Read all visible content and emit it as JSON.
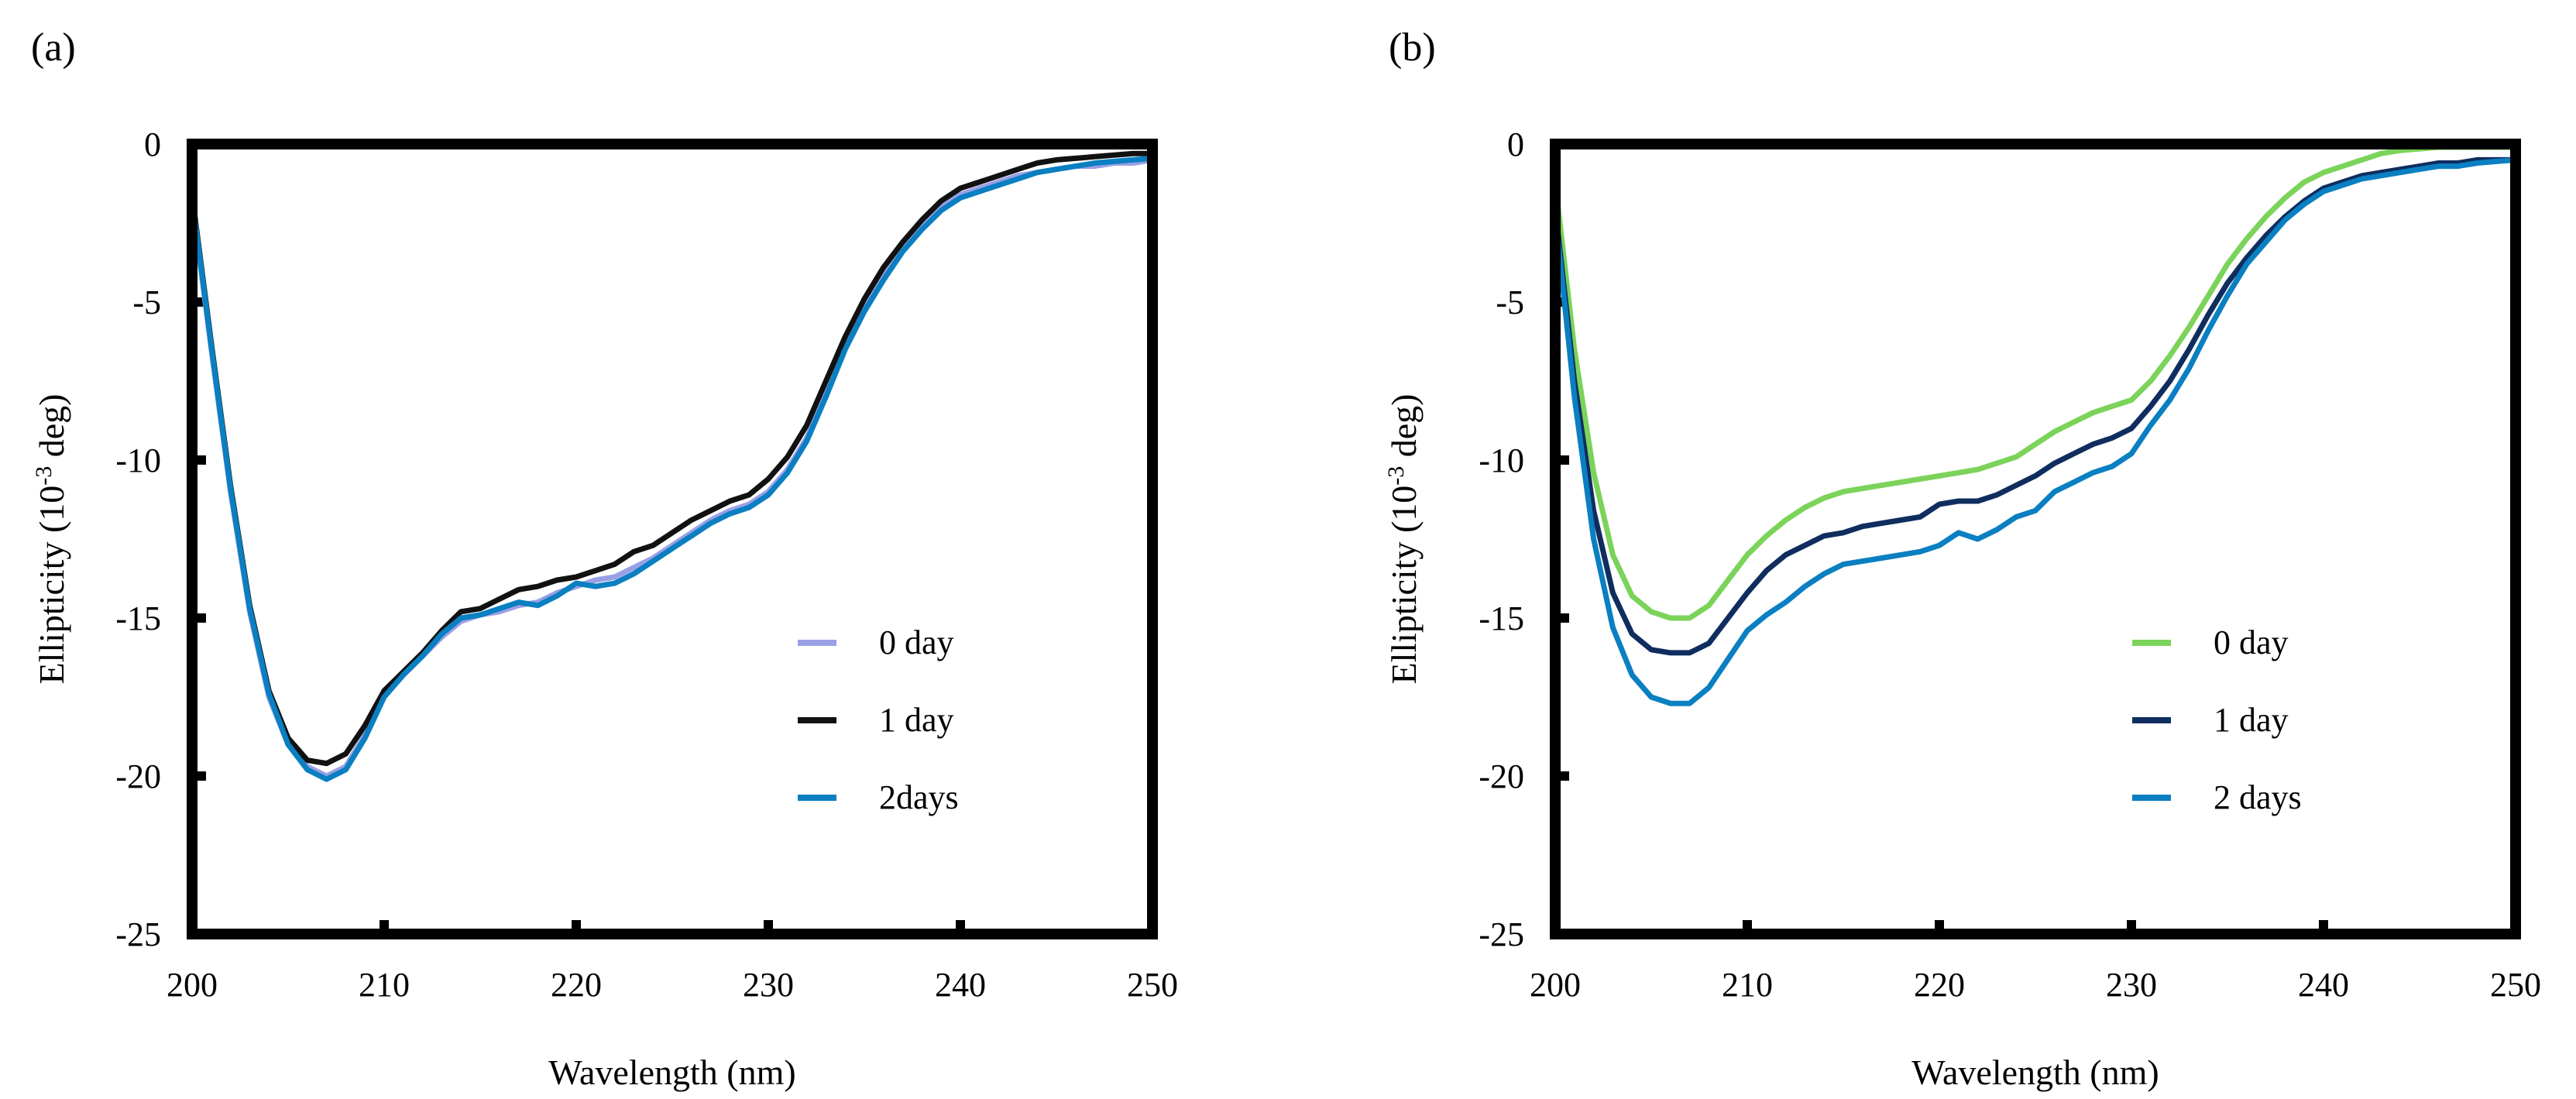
{
  "chart_data": [
    {
      "panel_label": "(a)",
      "type": "line",
      "xlabel": "Wavelength (nm)",
      "ylabel_main": "Ellipticity (10",
      "ylabel_sup": "-3",
      "ylabel_end": " deg)",
      "xlim": [
        200,
        250
      ],
      "ylim": [
        -25,
        0
      ],
      "xticks": [
        200,
        210,
        220,
        230,
        240,
        250
      ],
      "yticks": [
        0,
        -5,
        -10,
        -15,
        -20,
        -25
      ],
      "grid": false,
      "legend_position": "bottom-right",
      "x": [
        200,
        201,
        202,
        203,
        204,
        205,
        206,
        207,
        208,
        209,
        210,
        211,
        212,
        213,
        214,
        215,
        216,
        217,
        218,
        219,
        220,
        221,
        222,
        223,
        224,
        225,
        226,
        227,
        228,
        229,
        230,
        231,
        232,
        233,
        234,
        235,
        236,
        237,
        238,
        239,
        240,
        241,
        242,
        243,
        244,
        245,
        246,
        247,
        248,
        249,
        250
      ],
      "series": [
        {
          "name": "0 day",
          "color": "#9aa0e6",
          "values": [
            -1.8,
            -6.5,
            -11.0,
            -14.8,
            -17.5,
            -19.0,
            -19.7,
            -20.0,
            -19.7,
            -18.7,
            -17.4,
            -16.8,
            -16.2,
            -15.6,
            -15.1,
            -14.9,
            -14.8,
            -14.6,
            -14.5,
            -14.2,
            -14.0,
            -13.8,
            -13.7,
            -13.4,
            -13.1,
            -12.7,
            -12.3,
            -11.9,
            -11.6,
            -11.4,
            -11.0,
            -10.3,
            -9.3,
            -7.9,
            -6.4,
            -5.2,
            -4.2,
            -3.3,
            -2.6,
            -2.0,
            -1.6,
            -1.4,
            -1.2,
            -1.0,
            -0.9,
            -0.8,
            -0.7,
            -0.7,
            -0.6,
            -0.6,
            -0.5
          ]
        },
        {
          "name": "1 day",
          "color": "#111111",
          "values": [
            -1.6,
            -6.3,
            -10.8,
            -14.6,
            -17.3,
            -18.8,
            -19.5,
            -19.6,
            -19.3,
            -18.4,
            -17.3,
            -16.7,
            -16.1,
            -15.4,
            -14.8,
            -14.7,
            -14.4,
            -14.1,
            -14.0,
            -13.8,
            -13.7,
            -13.5,
            -13.3,
            -12.9,
            -12.7,
            -12.3,
            -11.9,
            -11.6,
            -11.3,
            -11.1,
            -10.6,
            -9.9,
            -8.9,
            -7.5,
            -6.1,
            -4.9,
            -3.9,
            -3.1,
            -2.4,
            -1.8,
            -1.4,
            -1.2,
            -1.0,
            -0.8,
            -0.6,
            -0.5,
            -0.45,
            -0.4,
            -0.35,
            -0.3,
            -0.3
          ]
        },
        {
          "name": "2days",
          "color": "#0a7fc1",
          "values": [
            -1.7,
            -6.4,
            -10.9,
            -14.7,
            -17.4,
            -19.0,
            -19.8,
            -20.1,
            -19.8,
            -18.8,
            -17.5,
            -16.8,
            -16.2,
            -15.5,
            -15.0,
            -14.9,
            -14.7,
            -14.5,
            -14.6,
            -14.3,
            -13.9,
            -14.0,
            -13.9,
            -13.6,
            -13.2,
            -12.8,
            -12.4,
            -12.0,
            -11.7,
            -11.5,
            -11.1,
            -10.4,
            -9.4,
            -8.0,
            -6.5,
            -5.3,
            -4.3,
            -3.4,
            -2.7,
            -2.1,
            -1.7,
            -1.5,
            -1.3,
            -1.1,
            -0.9,
            -0.8,
            -0.7,
            -0.6,
            -0.55,
            -0.5,
            -0.45
          ]
        }
      ]
    },
    {
      "panel_label": "(b)",
      "type": "line",
      "xlabel": "Wavelength (nm)",
      "ylabel_main": "Ellipticity (10",
      "ylabel_sup": "-3",
      "ylabel_end": " deg)",
      "xlim": [
        200,
        250
      ],
      "ylim": [
        -25,
        0
      ],
      "xticks": [
        200,
        210,
        220,
        230,
        240,
        250
      ],
      "yticks": [
        0,
        -5,
        -10,
        -15,
        -20,
        -25
      ],
      "grid": false,
      "legend_position": "bottom-right",
      "x": [
        200,
        201,
        202,
        203,
        204,
        205,
        206,
        207,
        208,
        209,
        210,
        211,
        212,
        213,
        214,
        215,
        216,
        217,
        218,
        219,
        220,
        221,
        222,
        223,
        224,
        225,
        226,
        227,
        228,
        229,
        230,
        231,
        232,
        233,
        234,
        235,
        236,
        237,
        238,
        239,
        240,
        241,
        242,
        243,
        244,
        245,
        246,
        247,
        248,
        249,
        250
      ],
      "series": [
        {
          "name": "0 day",
          "color": "#7bd35a",
          "values": [
            -1.2,
            -6.5,
            -10.4,
            -13.0,
            -14.3,
            -14.8,
            -15.0,
            -15.0,
            -14.6,
            -13.8,
            -13.0,
            -12.4,
            -11.9,
            -11.5,
            -11.2,
            -11.0,
            -10.9,
            -10.8,
            -10.7,
            -10.6,
            -10.5,
            -10.4,
            -10.3,
            -10.1,
            -9.9,
            -9.5,
            -9.1,
            -8.8,
            -8.5,
            -8.3,
            -8.1,
            -7.5,
            -6.7,
            -5.8,
            -4.8,
            -3.8,
            -3.0,
            -2.3,
            -1.7,
            -1.2,
            -0.9,
            -0.7,
            -0.5,
            -0.3,
            -0.2,
            -0.15,
            -0.1,
            -0.1,
            -0.1,
            -0.1,
            -0.1
          ]
        },
        {
          "name": "1 day",
          "color": "#0f2d5e",
          "values": [
            -2.0,
            -7.5,
            -11.6,
            -14.2,
            -15.5,
            -16.0,
            -16.1,
            -16.1,
            -15.8,
            -15.0,
            -14.2,
            -13.5,
            -13.0,
            -12.7,
            -12.4,
            -12.3,
            -12.1,
            -12.0,
            -11.9,
            -11.8,
            -11.4,
            -11.3,
            -11.3,
            -11.1,
            -10.8,
            -10.5,
            -10.1,
            -9.8,
            -9.5,
            -9.3,
            -9.0,
            -8.3,
            -7.5,
            -6.5,
            -5.4,
            -4.4,
            -3.6,
            -2.9,
            -2.3,
            -1.8,
            -1.4,
            -1.2,
            -1.0,
            -0.9,
            -0.8,
            -0.7,
            -0.6,
            -0.6,
            -0.5,
            -0.5,
            -0.5
          ]
        },
        {
          "name": "2 days",
          "color": "#0a7fc1",
          "values": [
            -2.2,
            -8.0,
            -12.5,
            -15.3,
            -16.8,
            -17.5,
            -17.7,
            -17.7,
            -17.2,
            -16.3,
            -15.4,
            -14.9,
            -14.5,
            -14.0,
            -13.6,
            -13.3,
            -13.2,
            -13.1,
            -13.0,
            -12.9,
            -12.7,
            -12.3,
            -12.5,
            -12.2,
            -11.8,
            -11.6,
            -11.0,
            -10.7,
            -10.4,
            -10.2,
            -9.8,
            -8.9,
            -8.1,
            -7.1,
            -5.9,
            -4.8,
            -3.8,
            -3.1,
            -2.4,
            -1.9,
            -1.5,
            -1.3,
            -1.1,
            -1.0,
            -0.9,
            -0.8,
            -0.7,
            -0.7,
            -0.6,
            -0.55,
            -0.5
          ]
        }
      ]
    }
  ]
}
